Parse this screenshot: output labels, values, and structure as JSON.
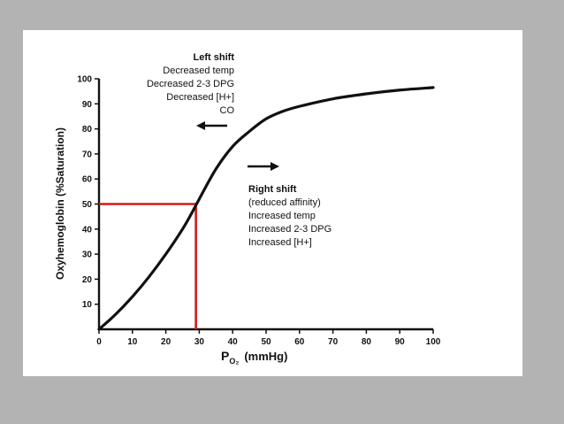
{
  "colors": {
    "background": "#b3b3b3",
    "panel": "#ffffff",
    "curve": "#111111",
    "marker": "#d21a1a"
  },
  "chart_data": {
    "type": "line",
    "title": "",
    "xlabel_main": "P",
    "xlabel_sub": "O₂",
    "xlabel_units": "(mmHg)",
    "ylabel": "Oxyhemoglobin (%Saturation)",
    "xlim": [
      0,
      100
    ],
    "ylim": [
      0,
      100
    ],
    "x_ticks": [
      "0",
      "10",
      "20",
      "30",
      "40",
      "50",
      "60",
      "70",
      "80",
      "90",
      "100"
    ],
    "y_ticks": [
      "10",
      "20",
      "30",
      "40",
      "50",
      "60",
      "70",
      "80",
      "90",
      "100"
    ],
    "grid": false,
    "series": [
      {
        "x": [
          0,
          5,
          10,
          15,
          20,
          25,
          28,
          30,
          35,
          40,
          45,
          50,
          55,
          60,
          70,
          80,
          90,
          100
        ],
        "y": [
          0,
          6,
          13,
          21,
          30,
          40,
          47,
          52,
          64,
          73,
          79,
          84,
          87,
          89,
          92,
          94,
          95.5,
          96.5
        ]
      }
    ],
    "p50_marker": {
      "x": 29,
      "y": 50
    },
    "annotations": {
      "left_shift": [
        "Left shift",
        "Decreased temp",
        "Decreased 2-3 DPG",
        "Decreased [H+]",
        "CO"
      ],
      "right_shift": [
        "Right shift",
        "(reduced affinity)",
        "Increased temp",
        "Increased 2-3 DPG",
        "Increased [H+]"
      ]
    }
  }
}
